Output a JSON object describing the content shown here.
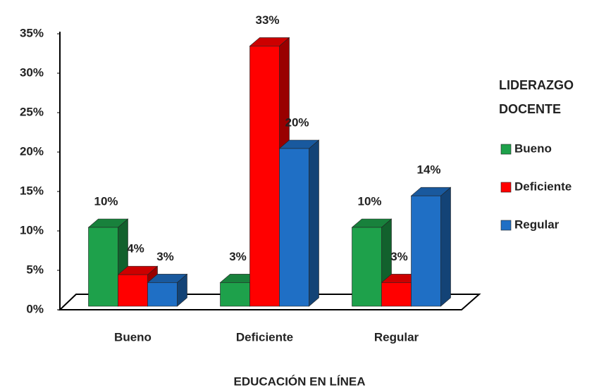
{
  "chart_data": {
    "type": "bar3d",
    "x_label": "EDUCACIÓN EN LÍNEA",
    "legend_title": "LIDERAZGO DOCENTE",
    "categories": [
      "Bueno",
      "Deficiente",
      "Regular"
    ],
    "series": [
      {
        "name": "Bueno",
        "color": "#1ea14b",
        "values": [
          10,
          3,
          10
        ],
        "value_labels": [
          "10%",
          "3%",
          "10%"
        ]
      },
      {
        "name": "Deficiente",
        "color": "#ff0000",
        "values": [
          4,
          33,
          3
        ],
        "value_labels": [
          "4%",
          "33%",
          "3%"
        ]
      },
      {
        "name": "Regular",
        "color": "#1f6fc5",
        "values": [
          3,
          20,
          14
        ],
        "value_labels": [
          "3%",
          "20%",
          "14%"
        ]
      }
    ],
    "ylim": [
      0,
      35
    ],
    "yticks": [
      {
        "value": 0,
        "label": "0%"
      },
      {
        "value": 5,
        "label": "5%"
      },
      {
        "value": 10,
        "label": "10%"
      },
      {
        "value": 15,
        "label": "15%"
      },
      {
        "value": 20,
        "label": "20%"
      },
      {
        "value": 25,
        "label": "25%"
      },
      {
        "value": 30,
        "label": "30%"
      },
      {
        "value": 35,
        "label": "35%"
      }
    ],
    "legend_position": "right"
  }
}
